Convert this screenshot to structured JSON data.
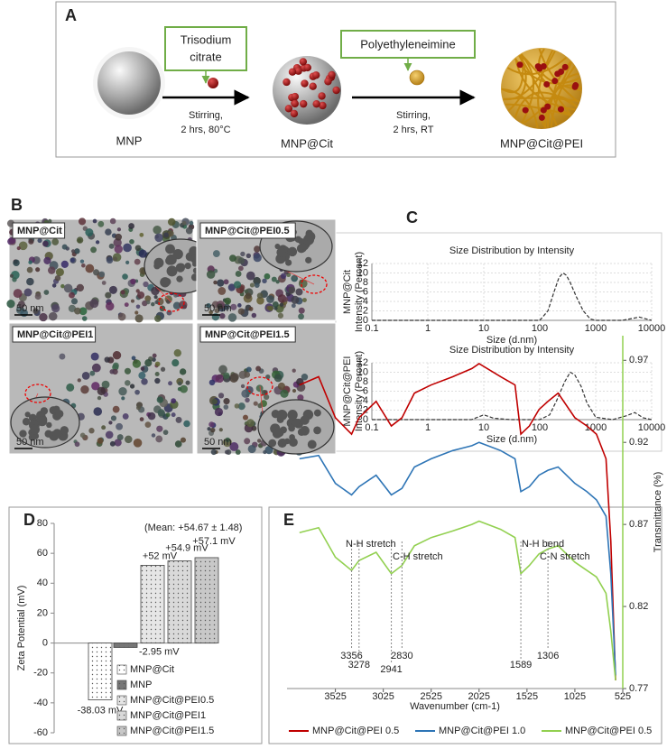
{
  "panel_a": {
    "letter": "A",
    "start": "MNP",
    "reagent1": [
      "Trisodium",
      "citrate"
    ],
    "condition1": [
      "Stirring,",
      "2 hrs, 80°C"
    ],
    "middle": "MNP@Cit",
    "reagent2": "Polyethyleneimine",
    "condition2": [
      "Stirring,",
      "2 hrs, RT"
    ],
    "product": "MNP@Cit@PEI"
  },
  "panel_b": {
    "letter": "B",
    "images": [
      {
        "label": "MNP@Cit",
        "scale": "50 nm"
      },
      {
        "label": "MNP@Cit@PEI0.5",
        "scale": "50 nm"
      },
      {
        "label": "MNP@Cit@PEI1",
        "scale": "50 nm"
      },
      {
        "label": "MNP@Cit@PEI1.5",
        "scale": "50 nm"
      }
    ]
  },
  "panel_c": {
    "letter": "C"
  },
  "panel_d": {
    "letter": "D"
  },
  "panel_e": {
    "letter": "E"
  },
  "chart_data": [
    {
      "type": "line",
      "title": "Size Distribution by Intensity",
      "side_label": "MNP@Cit",
      "x_label": "Size (d.nm)",
      "y_label": "Intensity (Percent)",
      "x_scale": "log",
      "line_style": "dashed",
      "x": [
        0.1,
        1,
        10,
        100,
        140,
        180,
        220,
        260,
        300,
        350,
        450,
        600,
        800,
        1000,
        3000,
        5000,
        6000,
        8000,
        10000
      ],
      "series": [
        {
          "color": "#333333",
          "values": [
            0,
            0,
            0,
            0,
            2,
            6,
            9,
            10,
            9.5,
            8,
            5,
            2,
            0.3,
            0,
            0,
            0.5,
            0.7,
            0.3,
            0
          ]
        }
      ],
      "xlim": [
        0.1,
        10000
      ],
      "xticks": [
        0.1,
        1,
        10,
        100,
        1000,
        10000
      ],
      "ylim": [
        0,
        12
      ],
      "yticks": [
        0,
        2,
        4,
        6,
        8,
        10,
        12
      ],
      "grid": true
    },
    {
      "type": "line",
      "title": "Size Distribution by Intensity",
      "side_label": "MNP@Cit@PEI",
      "x_label": "Size (d.nm)",
      "y_label": "Intensity (Percent)",
      "x_scale": "log",
      "line_style": "dashed",
      "x": [
        0.1,
        1,
        6,
        10,
        15,
        30,
        100,
        150,
        200,
        280,
        350,
        420,
        550,
        700,
        1000,
        2000,
        3500,
        5000,
        7000,
        10000
      ],
      "series": [
        {
          "color": "#333333",
          "values": [
            0,
            0,
            0,
            1,
            0.3,
            0,
            0,
            1,
            4,
            8,
            10,
            9.5,
            7,
            3.5,
            0.5,
            0,
            0.8,
            1.5,
            0.4,
            0
          ]
        }
      ],
      "xlim": [
        0.1,
        10000
      ],
      "xticks": [
        0.1,
        1,
        10,
        100,
        1000,
        10000
      ],
      "ylim": [
        0,
        12
      ],
      "yticks": [
        0,
        2,
        4,
        6,
        8,
        10,
        12
      ],
      "grid": true
    },
    {
      "type": "bar",
      "y_label": "Zeta Potential (mV)",
      "annotation": "(Mean: +54.67 ± 1.48)",
      "categories": [
        "MNP@Cit",
        "MNP",
        "MNP@Cit@PEI0.5",
        "MNP@Cit@PEI1",
        "MNP@Cit@PEI1.5"
      ],
      "values": [
        -38.03,
        -2.95,
        52,
        54.9,
        57.1
      ],
      "value_labels": [
        "-38.03 mV",
        "-2.95 mV",
        "+52 mV",
        "+54.9 mV",
        "+57.1 mV"
      ],
      "colors": [
        "#ffffff",
        "#777777",
        "#e6e6e6",
        "#d9d9d9",
        "#c8c8c8"
      ],
      "ylim": [
        -60,
        80
      ],
      "yticks": [
        -60,
        -40,
        -20,
        0,
        20,
        40,
        60,
        80
      ],
      "legend": "lower-right"
    },
    {
      "type": "line",
      "x_label": "Wavenumber (cm-1)",
      "y_label": "Transmittance (%)",
      "y_axis_side": "right",
      "legend": "bottom",
      "x": [
        3900,
        3700,
        3525,
        3356,
        3278,
        3100,
        2941,
        2830,
        2700,
        2525,
        2300,
        2100,
        2025,
        1800,
        1650,
        1589,
        1500,
        1400,
        1306,
        1200,
        1025,
        900,
        800,
        700,
        650,
        600
      ],
      "series": [
        {
          "name": "MNP@Cit@PEI 0.5",
          "color": "#c00000",
          "values": [
            0.955,
            0.96,
            0.935,
            0.925,
            0.935,
            0.945,
            0.93,
            0.935,
            0.95,
            0.955,
            0.96,
            0.965,
            0.968,
            0.96,
            0.955,
            0.925,
            0.93,
            0.94,
            0.945,
            0.95,
            0.935,
            0.93,
            0.925,
            0.91,
            0.86,
            0.775
          ]
        },
        {
          "name": "MNP@Cit@PEI 1.0",
          "color": "#2e75b6",
          "values": [
            0.91,
            0.912,
            0.895,
            0.888,
            0.893,
            0.9,
            0.888,
            0.892,
            0.905,
            0.91,
            0.915,
            0.918,
            0.92,
            0.915,
            0.91,
            0.89,
            0.893,
            0.9,
            0.903,
            0.905,
            0.895,
            0.89,
            0.885,
            0.875,
            0.84,
            0.778
          ]
        },
        {
          "name": "MNP@Cit@PEI 0.5",
          "color": "#92d050",
          "values": [
            0.865,
            0.868,
            0.85,
            0.842,
            0.848,
            0.853,
            0.84,
            0.845,
            0.857,
            0.862,
            0.866,
            0.87,
            0.872,
            0.867,
            0.862,
            0.84,
            0.845,
            0.852,
            0.855,
            0.857,
            0.847,
            0.842,
            0.838,
            0.828,
            0.805,
            0.775
          ]
        }
      ],
      "annotations": [
        "N-H stretch",
        "C-H stretch",
        "N-H bend",
        "C-N stretch"
      ],
      "peaks": [
        3356,
        3278,
        2941,
        2830,
        1589,
        1306
      ],
      "xlim": [
        4030,
        525
      ],
      "xticks": [
        3525,
        3025,
        2525,
        2025,
        1525,
        1025,
        525
      ],
      "ylim": [
        0.77,
        0.985
      ],
      "yticks": [
        0.77,
        0.82,
        0.87,
        0.92,
        0.97
      ]
    }
  ]
}
